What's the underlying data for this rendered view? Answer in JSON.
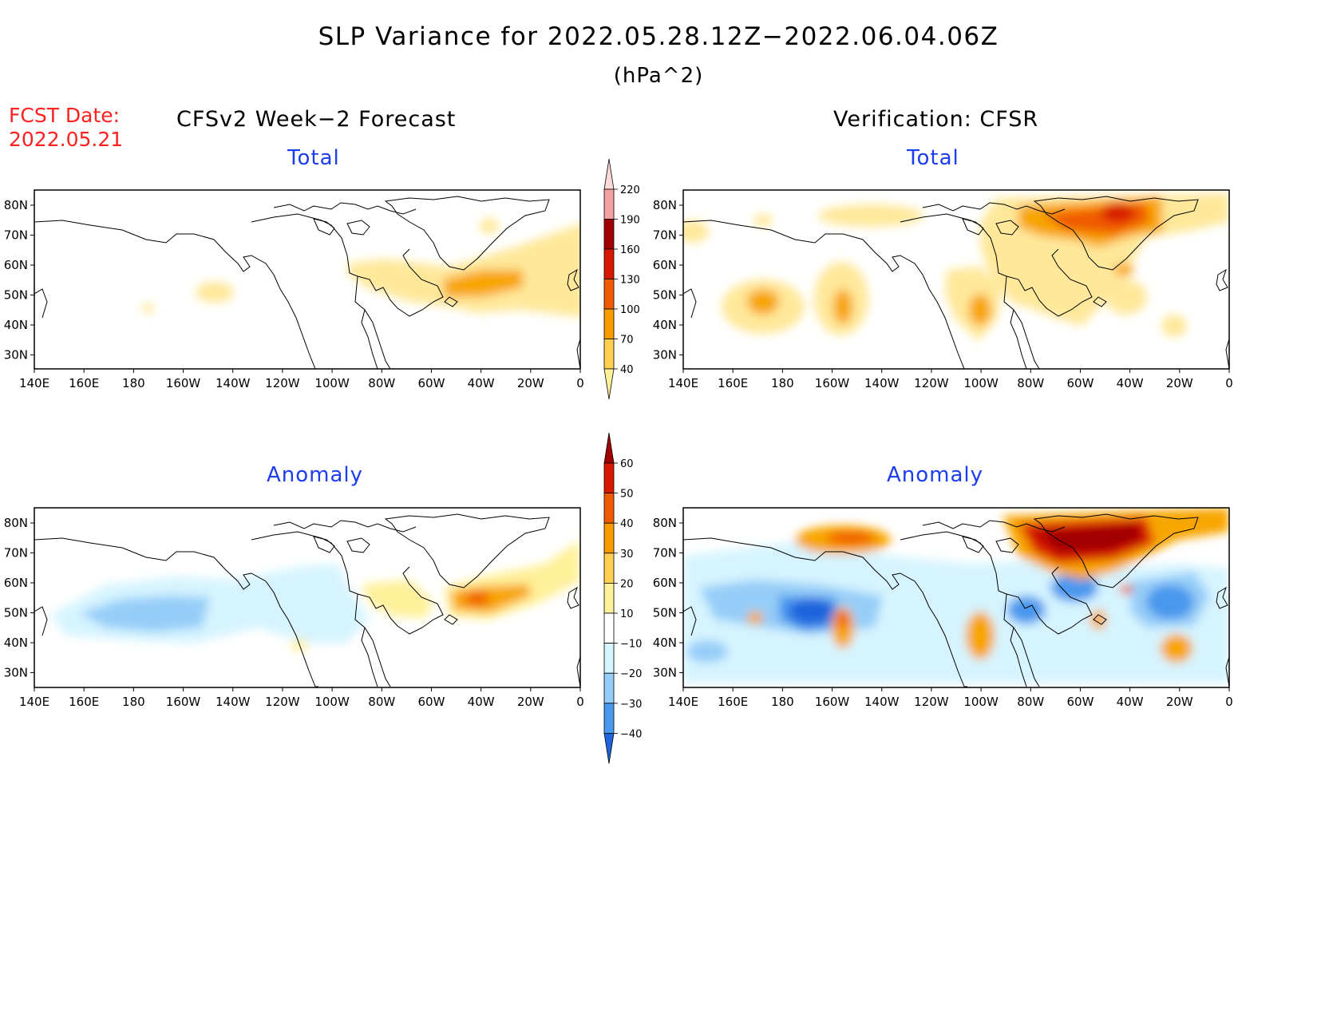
{
  "title": "SLP Variance for 2022.05.28.12Z−2022.06.04.06Z",
  "units": "(hPa^2)",
  "fcst_date": {
    "label": "FCST Date:",
    "value": "2022.05.21"
  },
  "left_column": {
    "heading": "CFSv2 Week−2 Forecast"
  },
  "right_column": {
    "heading": "Verification: CFSR"
  },
  "panels": [
    {
      "id": "forecast-total",
      "subtitle": "Total"
    },
    {
      "id": "verification-total",
      "subtitle": "Total"
    },
    {
      "id": "forecast-anomaly",
      "subtitle": "Anomaly"
    },
    {
      "id": "verification-anomaly",
      "subtitle": "Anomaly"
    }
  ],
  "map_axes": {
    "lon_labels": [
      "140E",
      "160E",
      "180",
      "160W",
      "140W",
      "120W",
      "100W",
      "80W",
      "60W",
      "40W",
      "20W",
      "0"
    ],
    "lat_labels_total": [
      "80N",
      "70N",
      "60N",
      "50N",
      "40N",
      "30N"
    ],
    "lat_labels_anomaly": [
      "80N",
      "70N",
      "60N",
      "50N",
      "40N",
      "30N"
    ]
  },
  "colorbar_total": {
    "levels": [
      "220",
      "190",
      "160",
      "130",
      "100",
      "70",
      "40"
    ],
    "colors": [
      "#ffd8d8",
      "#f2a0a0",
      "#a00000",
      "#d81800",
      "#f05a00",
      "#f89a00",
      "#ffcf50",
      "#fff09a"
    ]
  },
  "colorbar_anomaly": {
    "levels": [
      "60",
      "50",
      "40",
      "30",
      "20",
      "10",
      "−10",
      "−20",
      "−30",
      "−40"
    ],
    "colors": [
      "#a00000",
      "#d81800",
      "#f05a00",
      "#f89a00",
      "#ffcf50",
      "#fff09a",
      "#ffffff",
      "#d6f4ff",
      "#96cdf8",
      "#4898ee",
      "#1e64dc"
    ]
  }
}
